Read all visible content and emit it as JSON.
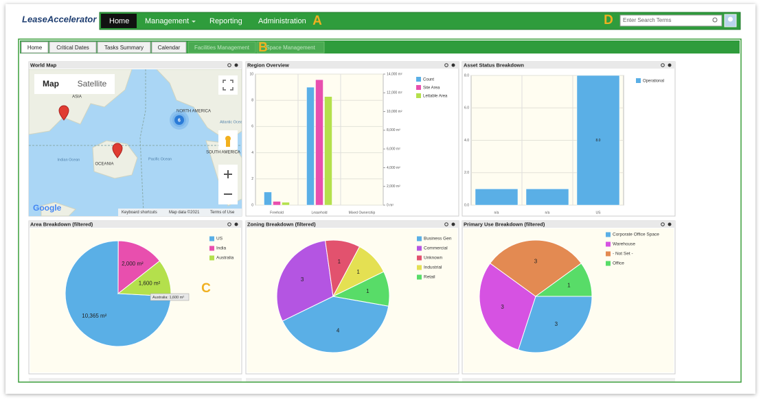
{
  "header": {
    "logo": "LeaseAccelerator",
    "nav": [
      "Home",
      "Management",
      "Reporting",
      "Administration"
    ],
    "search_placeholder": "Enter Search Terms"
  },
  "tabs": [
    "Home",
    "Critical Dates",
    "Tasks Summary",
    "Calendar",
    "Facilities Management",
    "Space Management"
  ],
  "callouts": [
    "A",
    "B",
    "C",
    "D"
  ],
  "map": {
    "title": "World Map",
    "buttons": [
      "Map",
      "Satellite"
    ],
    "labels": [
      "ASIA",
      "OCEANIA",
      "Indian Ocean",
      "NORTH AMERICA",
      "Atlantic Ocean",
      "Pacific Ocean",
      "SOUTH AMERICA"
    ],
    "cluster": "6",
    "logo": "Google",
    "footer": [
      "Keyboard shortcuts",
      "Map data ©2021",
      "Terms of Use"
    ]
  },
  "chart_data": [
    {
      "type": "bar",
      "title": "Region Overview",
      "categories": [
        "Freehold",
        "Leasehold",
        "Mixed Ownership"
      ],
      "series": [
        {
          "name": "Count",
          "color": "#5aafe6",
          "values": [
            1,
            9,
            0
          ]
        },
        {
          "name": "Site Area",
          "color": "#e84fae",
          "axis": "y2",
          "values": [
            400,
            13400,
            0
          ]
        },
        {
          "name": "Lettable Area",
          "color": "#b4e04c",
          "axis": "y2",
          "values": [
            300,
            11600,
            0
          ]
        }
      ],
      "ylim": [
        0,
        10
      ],
      "yticks": [
        0,
        2,
        4,
        6,
        8,
        10
      ],
      "y2lim": [
        0,
        14000
      ],
      "y2ticks": [
        {
          "value": 0,
          "label": "0 m²"
        },
        {
          "value": 2000,
          "label": "2,000 m²"
        },
        {
          "value": 4000,
          "label": "4,000 m²"
        },
        {
          "value": 6000,
          "label": "6,000 m²"
        },
        {
          "value": 8000,
          "label": "8,000 m²"
        },
        {
          "value": 10000,
          "label": "10,000 m²"
        },
        {
          "value": 12000,
          "label": "12,000 m²"
        },
        {
          "value": 14000,
          "label": "14,000 m²"
        }
      ],
      "grid": true
    },
    {
      "type": "bar",
      "title": "Asset Status Breakdown",
      "categories": [
        "n/a",
        "n/a",
        "US"
      ],
      "series": [
        {
          "name": "Operational",
          "color": "#5aafe6",
          "values": [
            1,
            1,
            8
          ],
          "value_labels": [
            null,
            null,
            "8.0"
          ]
        }
      ],
      "ylim": [
        0,
        8
      ],
      "yticks": [
        {
          "value": 0,
          "label": "0.0"
        },
        {
          "value": 2,
          "label": "2.0"
        },
        {
          "value": 4,
          "label": "4.0"
        },
        {
          "value": 6,
          "label": "6.0"
        },
        {
          "value": 8,
          "label": "8.0"
        }
      ],
      "grid": true
    },
    {
      "type": "pie",
      "title": "Area Breakdown (filtered)",
      "categories": [
        "US",
        "India",
        "Australia"
      ],
      "values": [
        10365,
        2000,
        1600
      ],
      "value_labels": [
        "10,365 m²",
        "2,000 m²",
        "1,600 m²"
      ],
      "colors": [
        "#5aafe6",
        "#e84fae",
        "#b4e04c"
      ],
      "annotation": "Australia: 1,600 m²"
    },
    {
      "type": "pie",
      "title": "Zoning Breakdown (filtered)",
      "categories": [
        "Business Gen",
        "Commercial",
        "Unknown",
        "Industrial",
        "Retail"
      ],
      "values": [
        4,
        3,
        1,
        1,
        1
      ],
      "colors": [
        "#5aafe6",
        "#b455e2",
        "#e2526e",
        "#e4e052",
        "#58dc68"
      ]
    },
    {
      "type": "pie",
      "title": "Primary Use Breakdown (filtered)",
      "categories": [
        "Corporate Office Space",
        "Warehouse",
        "- Not Set -",
        "Office"
      ],
      "values": [
        3,
        3,
        3,
        1
      ],
      "colors": [
        "#5aafe6",
        "#d652e2",
        "#e38a52",
        "#58dc68"
      ]
    }
  ]
}
